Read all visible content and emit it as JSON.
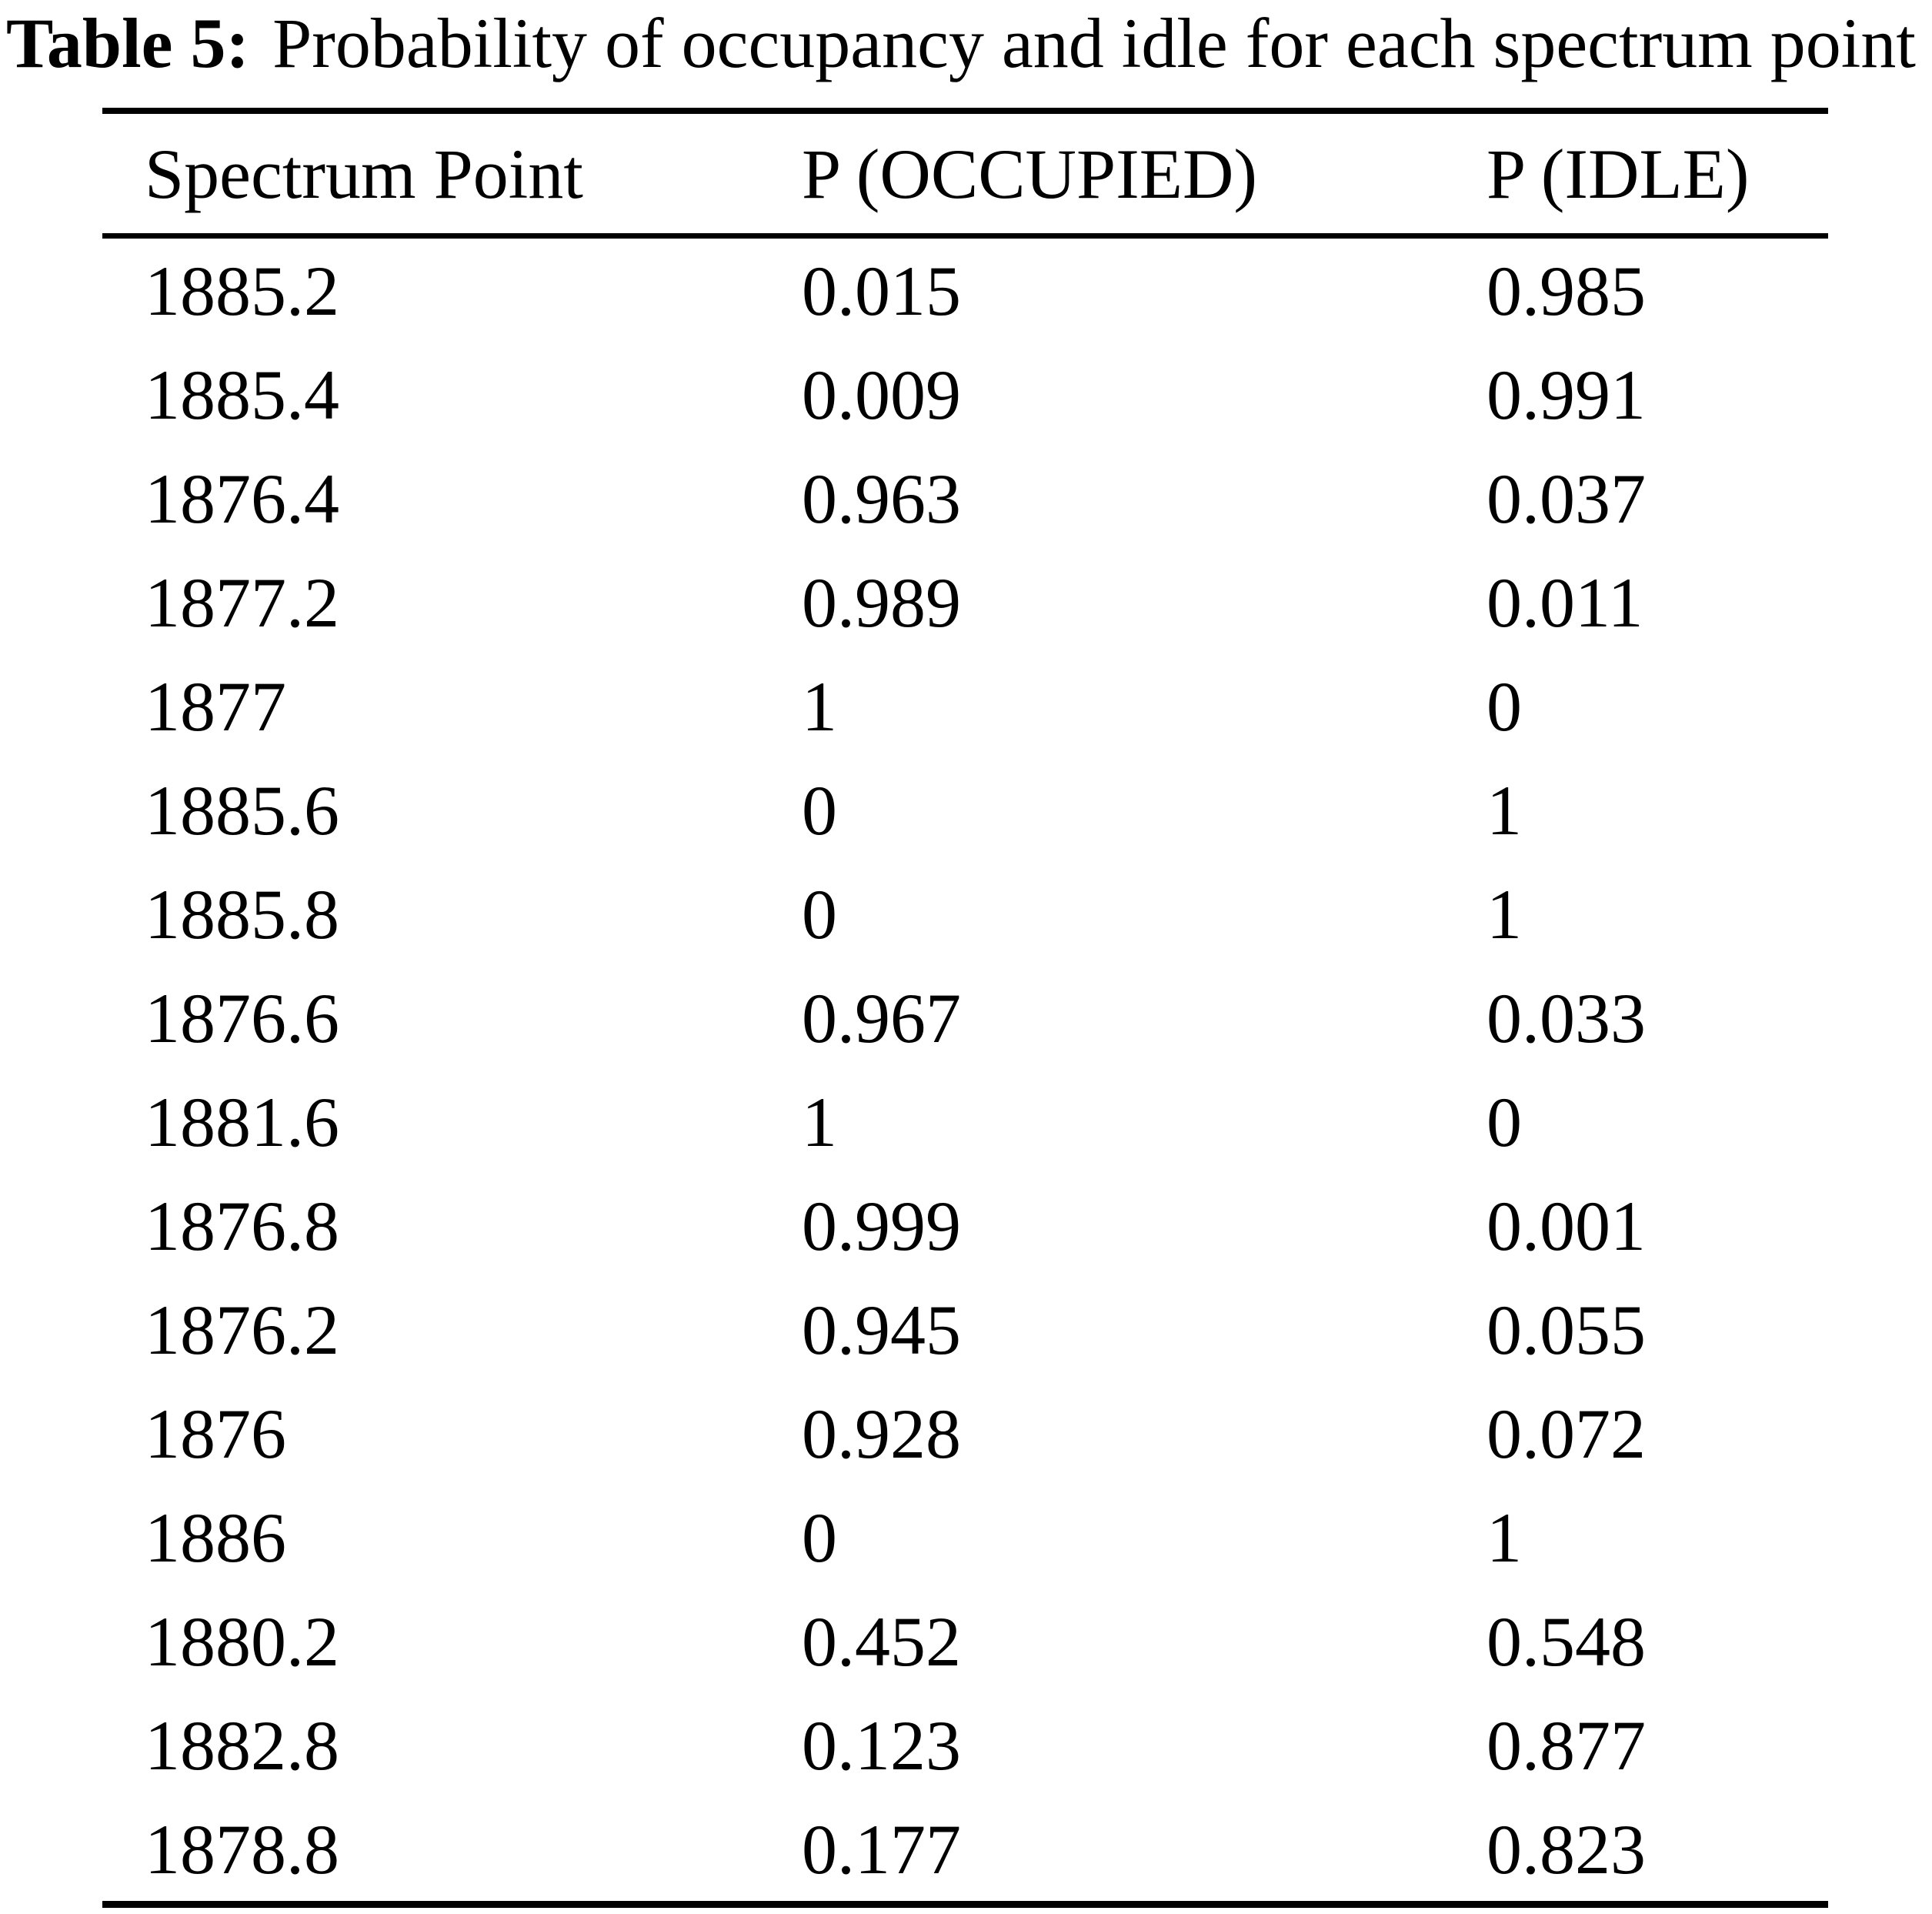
{
  "page": {
    "background_color": "#ffffff",
    "text_color": "#000000",
    "rule_color": "#000000"
  },
  "caption": {
    "label": "Table 5:",
    "text": "Probability of occupancy and idle for each spectrum point"
  },
  "table": {
    "headers": [
      "Spectrum Point",
      "P (OCCUPIED)",
      "P (IDLE)"
    ],
    "rows": [
      [
        "1885.2",
        "0.015",
        "0.985"
      ],
      [
        "1885.4",
        "0.009",
        "0.991"
      ],
      [
        "1876.4",
        "0.963",
        "0.037"
      ],
      [
        "1877.2",
        "0.989",
        "0.011"
      ],
      [
        "1877",
        "1",
        "0"
      ],
      [
        "1885.6",
        "0",
        "1"
      ],
      [
        "1885.8",
        "0",
        "1"
      ],
      [
        "1876.6",
        "0.967",
        "0.033"
      ],
      [
        "1881.6",
        "1",
        "0"
      ],
      [
        "1876.8",
        "0.999",
        "0.001"
      ],
      [
        "1876.2",
        "0.945",
        "0.055"
      ],
      [
        "1876",
        "0.928",
        "0.072"
      ],
      [
        "1886",
        "0",
        "1"
      ],
      [
        "1880.2",
        "0.452",
        "0.548"
      ],
      [
        "1882.8",
        "0.123",
        "0.877"
      ],
      [
        "1878.8",
        "0.177",
        "0.823"
      ]
    ]
  },
  "chart_data": {
    "type": "table",
    "title": "Table 5: Probability of occupancy and idle for each spectrum point",
    "columns": [
      "Spectrum Point",
      "P (OCCUPIED)",
      "P (IDLE)"
    ],
    "spectrum_points": [
      1885.2,
      1885.4,
      1876.4,
      1877.2,
      1877,
      1885.6,
      1885.8,
      1876.6,
      1881.6,
      1876.8,
      1876.2,
      1876,
      1886,
      1880.2,
      1882.8,
      1878.8
    ],
    "p_occupied": [
      0.015,
      0.009,
      0.963,
      0.989,
      1,
      0,
      0,
      0.967,
      1,
      0.999,
      0.945,
      0.928,
      0,
      0.452,
      0.123,
      0.177
    ],
    "p_idle": [
      0.985,
      0.991,
      0.037,
      0.011,
      0,
      1,
      1,
      0.033,
      0,
      0.001,
      0.055,
      0.072,
      1,
      0.548,
      0.877,
      0.823
    ]
  }
}
